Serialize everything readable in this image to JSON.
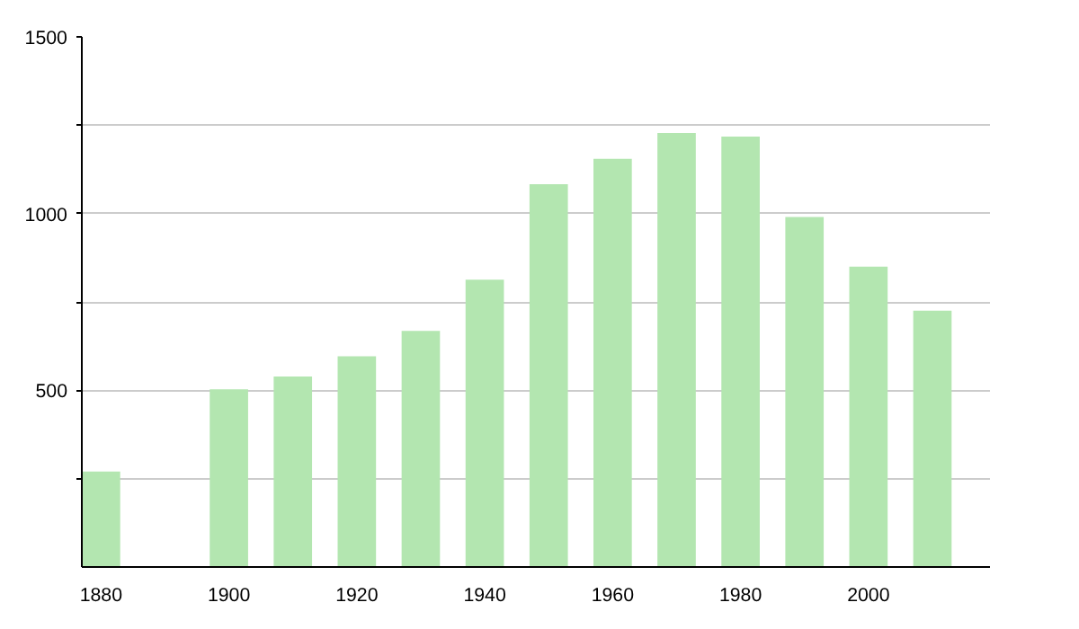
{
  "chart_data": {
    "type": "bar",
    "x": [
      1880,
      1900,
      1910,
      1920,
      1930,
      1940,
      1950,
      1960,
      1970,
      1980,
      1990,
      2000,
      2010
    ],
    "values": [
      270,
      503,
      539,
      596,
      668,
      813,
      1083,
      1155,
      1228,
      1218,
      990,
      850,
      725
    ],
    "color": "#b3e6b0",
    "xlim": [
      1877,
      2019
    ],
    "xticks": [
      1880,
      1900,
      1920,
      1940,
      1960,
      1980,
      2000
    ],
    "ylim": [
      0,
      1500
    ],
    "yticks": [
      {
        "value": 250,
        "label": null
      },
      500,
      {
        "value": 750,
        "label": null
      },
      1000,
      {
        "value": 1250,
        "label": null
      },
      1500
    ],
    "grid": "y"
  }
}
